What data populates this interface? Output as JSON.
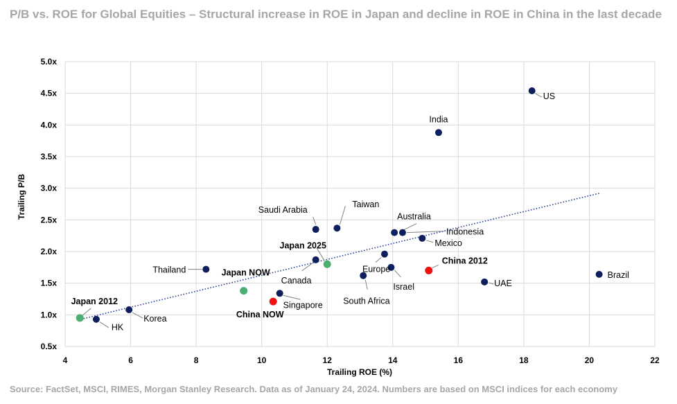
{
  "title": "P/B vs. ROE for Global Equities – Structural increase in ROE in Japan and decline in ROE in China in the last decade",
  "source": "Source: FactSet, MSCI, RIMES, Morgan Stanley Research. Data as of January 24, 2024. Numbers are based on MSCI indices for each economy",
  "chart_data": {
    "type": "scatter",
    "xlabel": "Trailing ROE (%)",
    "ylabel": "Trailing P/B",
    "xlim": [
      4,
      22
    ],
    "ylim": [
      0.5,
      5.0
    ],
    "x_ticks": [
      4,
      6,
      8,
      10,
      12,
      14,
      16,
      18,
      20,
      22
    ],
    "x_tick_labels": [
      "4",
      "6",
      "8",
      "10",
      "12",
      "14",
      "16",
      "18",
      "20",
      "22"
    ],
    "y_ticks": [
      0.5,
      1.0,
      1.5,
      2.0,
      2.5,
      3.0,
      3.5,
      4.0,
      4.5,
      5.0
    ],
    "y_tick_labels": [
      "0.5x",
      "1.0x",
      "1.5x",
      "2.0x",
      "2.5x",
      "3.0x",
      "3.5x",
      "4.0x",
      "4.5x",
      "5.0x"
    ],
    "grid": true,
    "trendline": {
      "style": "dotted",
      "color": "#1f3a93",
      "from": [
        4.4,
        0.92
      ],
      "to": [
        20.3,
        2.92
      ]
    },
    "colors": {
      "market": "#0d1f5c",
      "japan": "#4caf72",
      "china": "#ee1111",
      "grid": "#d9d9d9"
    },
    "points": [
      {
        "name": "US",
        "x": 18.25,
        "y": 4.54,
        "group": "market"
      },
      {
        "name": "India",
        "x": 15.4,
        "y": 3.88,
        "group": "market"
      },
      {
        "name": "Taiwan",
        "x": 12.3,
        "y": 2.37,
        "group": "market"
      },
      {
        "name": "Saudi Arabia",
        "x": 11.65,
        "y": 2.35,
        "group": "market"
      },
      {
        "name": "Australia",
        "x": 14.05,
        "y": 2.3,
        "group": "market"
      },
      {
        "name": "Indonesia",
        "x": 14.3,
        "y": 2.3,
        "group": "market"
      },
      {
        "name": "Mexico",
        "x": 14.9,
        "y": 2.21,
        "group": "market"
      },
      {
        "name": "Europe",
        "x": 13.75,
        "y": 1.96,
        "group": "market"
      },
      {
        "name": "Canada",
        "x": 11.65,
        "y": 1.87,
        "group": "market"
      },
      {
        "name": "Thailand",
        "x": 8.3,
        "y": 1.72,
        "group": "market"
      },
      {
        "name": "Israel",
        "x": 13.95,
        "y": 1.75,
        "group": "market"
      },
      {
        "name": "South Africa",
        "x": 13.1,
        "y": 1.62,
        "group": "market"
      },
      {
        "name": "Brazil",
        "x": 20.3,
        "y": 1.64,
        "group": "market"
      },
      {
        "name": "UAE",
        "x": 16.8,
        "y": 1.52,
        "group": "market"
      },
      {
        "name": "Singapore",
        "x": 10.55,
        "y": 1.34,
        "group": "market"
      },
      {
        "name": "Korea",
        "x": 5.95,
        "y": 1.08,
        "group": "market"
      },
      {
        "name": "HK",
        "x": 4.95,
        "y": 0.93,
        "group": "market"
      },
      {
        "name": "Japan 2025",
        "x": 12.0,
        "y": 1.8,
        "group": "japan"
      },
      {
        "name": "Japan NOW",
        "x": 9.45,
        "y": 1.38,
        "group": "japan"
      },
      {
        "name": "Japan 2012",
        "x": 4.45,
        "y": 0.95,
        "group": "japan"
      },
      {
        "name": "China 2012",
        "x": 15.1,
        "y": 1.7,
        "group": "china"
      },
      {
        "name": "China NOW",
        "x": 10.35,
        "y": 1.21,
        "group": "china"
      }
    ]
  }
}
